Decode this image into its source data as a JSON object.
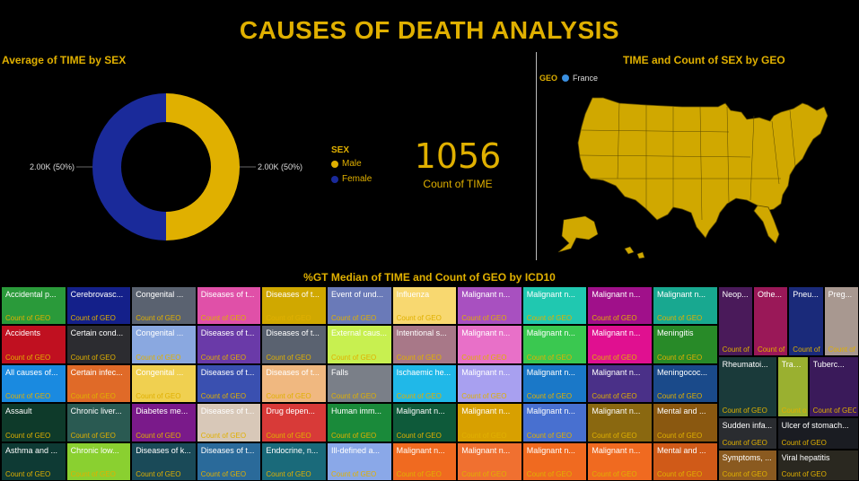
{
  "page": {
    "title": "CAUSES OF DEATH ANALYSIS"
  },
  "colors": {
    "accent": "#e0b000",
    "male": "#e0b000",
    "female": "#1a2a9a",
    "france": "#3a8fe0"
  },
  "donut": {
    "title": "Average of TIME by SEX",
    "left_label": "2.00K (50%)",
    "right_label": "2.00K (50%)"
  },
  "legend": {
    "title": "SEX",
    "items": [
      {
        "label": "Male",
        "color": "#e0b000"
      },
      {
        "label": "Female",
        "color": "#1a2a9a"
      }
    ]
  },
  "kpi": {
    "value": "1056",
    "label": "Count of TIME"
  },
  "map": {
    "title": "TIME and Count of SEX by GEO",
    "legend_title": "GEO",
    "legend_item": "France"
  },
  "treemap": {
    "title": "%GT Median of TIME and Count of GEO by ICD10",
    "count_label": "Count of GEO"
  },
  "chart_data": [
    {
      "type": "pie",
      "title": "Average of TIME by SEX",
      "categories": [
        "Male",
        "Female"
      ],
      "values": [
        2000,
        2000
      ],
      "data_labels": [
        "2.00K (50%)",
        "2.00K (50%)"
      ],
      "legend_placement": "right"
    },
    {
      "type": "table",
      "title": "Count of TIME",
      "values": [
        1056
      ]
    },
    {
      "type": "treemap",
      "title": "%GT Median of TIME and Count of GEO by ICD10",
      "value_label": "Count of GEO",
      "columns": [
        {
          "items": [
            {
              "name": "Accidental p...",
              "color": "#2a9a3a"
            },
            {
              "name": "Accidents",
              "color": "#c01020"
            },
            {
              "name": "All causes of...",
              "color": "#1a8ae0"
            },
            {
              "name": "Assault",
              "color": "#0e3a2a"
            },
            {
              "name": "Asthma and ...",
              "color": "#0e3a34"
            }
          ]
        },
        {
          "items": [
            {
              "name": "Cerebrovasc...",
              "color": "#14208a"
            },
            {
              "name": "Certain cond...",
              "color": "#2c2c30"
            },
            {
              "name": "Certain infec...",
              "color": "#e06a28"
            },
            {
              "name": "Chronic liver...",
              "color": "#2a5a52"
            },
            {
              "name": "Chronic low...",
              "color": "#8ad030"
            }
          ]
        },
        {
          "items": [
            {
              "name": "Congenital ...",
              "color": "#5a6270"
            },
            {
              "name": "Congenital ...",
              "color": "#8aa8e0"
            },
            {
              "name": "Congenital ...",
              "color": "#f0d050"
            },
            {
              "name": "Diabetes me...",
              "color": "#7a1a8a"
            },
            {
              "name": "Diseases of k...",
              "color": "#1a4a58"
            }
          ]
        },
        {
          "items": [
            {
              "name": "Diseases of t...",
              "color": "#e050a8"
            },
            {
              "name": "Diseases of t...",
              "color": "#6a3aa8"
            },
            {
              "name": "Diseases of t...",
              "color": "#3a50b0"
            },
            {
              "name": "Diseases of t...",
              "color": "#d8c8b8"
            },
            {
              "name": "Diseases of t...",
              "color": "#2a6a9a"
            }
          ]
        },
        {
          "items": [
            {
              "name": "Diseases of t...",
              "color": "#d0a800"
            },
            {
              "name": "Diseases of t...",
              "color": "#5a6270"
            },
            {
              "name": "Diseases of t...",
              "color": "#f0b880"
            },
            {
              "name": "Drug depen...",
              "color": "#d83a38"
            },
            {
              "name": "Endocrine, n...",
              "color": "#1a6a7a"
            }
          ]
        },
        {
          "items": [
            {
              "name": "Event of und...",
              "color": "#6a7ab8"
            },
            {
              "name": "External caus...",
              "color": "#c8f050"
            },
            {
              "name": "Falls",
              "color": "#7a7f88"
            },
            {
              "name": "Human imm...",
              "color": "#1a8a3a"
            },
            {
              "name": "Ill-defined a...",
              "color": "#8aa8e8"
            }
          ]
        },
        {
          "items": [
            {
              "name": "Influenza",
              "color": "#f8d870"
            },
            {
              "name": "Intentional s...",
              "color": "#a87888"
            },
            {
              "name": "Ischaemic he...",
              "color": "#20b8e8"
            },
            {
              "name": "Malignant n...",
              "color": "#0e5a3a"
            },
            {
              "name": "Malignant n...",
              "color": "#f06a20"
            }
          ]
        },
        {
          "items": [
            {
              "name": "Malignant n...",
              "color": "#a850c0"
            },
            {
              "name": "Malignant n...",
              "color": "#e870c8"
            },
            {
              "name": "Malignant n...",
              "color": "#a8a0f0"
            },
            {
              "name": "Malignant n...",
              "color": "#d8a000"
            },
            {
              "name": "Malignant n...",
              "color": "#f07030"
            }
          ]
        },
        {
          "items": [
            {
              "name": "Malignant n...",
              "color": "#20c8b0"
            },
            {
              "name": "Malignant n...",
              "color": "#3ac850"
            },
            {
              "name": "Malignant n...",
              "color": "#1a78c8"
            },
            {
              "name": "Malignant n...",
              "color": "#4870d0"
            },
            {
              "name": "Malignant n...",
              "color": "#f06a20"
            }
          ]
        },
        {
          "items": [
            {
              "name": "Malignant n...",
              "color": "#a0108a"
            },
            {
              "name": "Malignant n...",
              "color": "#e01090"
            },
            {
              "name": "Malignant n...",
              "color": "#4a3088"
            },
            {
              "name": "Malignant n...",
              "color": "#8a6810"
            },
            {
              "name": "Malignant n...",
              "color": "#f06a20"
            }
          ]
        },
        {
          "items": [
            {
              "name": "Malignant n...",
              "color": "#18a890"
            },
            {
              "name": "Meningitis",
              "color": "#288a28"
            },
            {
              "name": "Meningococ...",
              "color": "#1a4a8a"
            },
            {
              "name": "Mental and ...",
              "color": "#8a5810"
            },
            {
              "name": "Mental and ...",
              "color": "#d05a18"
            }
          ]
        }
      ],
      "right_block_top": [
        {
          "name": "Neop...",
          "color": "#4a1a5a"
        },
        {
          "name": "Othe...",
          "color": "#9a1858"
        },
        {
          "name": "Pneu...",
          "color": "#1a2a7a"
        },
        {
          "name": "Preg...",
          "color": "#a89890"
        }
      ],
      "right_block_mid": [
        {
          "name": "Rheumatoi...",
          "color": "#1a3a3a"
        },
        {
          "name": "Transp...",
          "color": "#9ab030"
        },
        {
          "name": "Tuberc...",
          "color": "#3a1a5a"
        }
      ],
      "right_block_bottom": [
        {
          "name": "Sudden infa...",
          "color": "#2a2c30"
        },
        {
          "name": "Symptoms, ...",
          "color": "#8a5a20"
        },
        {
          "name": "Ulcer of stomach...",
          "color": "#1a1c22"
        },
        {
          "name": "Viral hepatitis",
          "color": "#2a2820"
        }
      ]
    }
  ]
}
